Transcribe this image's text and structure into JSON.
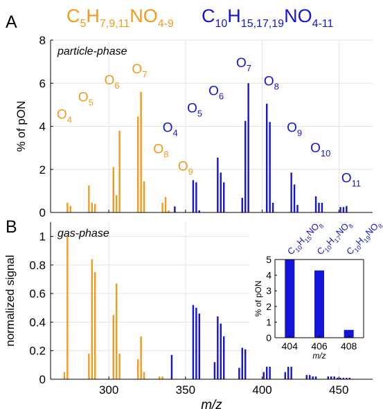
{
  "colors": {
    "orange": "#F39A1E",
    "blue": "#1414D6",
    "axis": "#000000",
    "grid": "#E3E3E3"
  },
  "headers": {
    "orange": {
      "c": "C",
      "c_sub": "5",
      "h": "H",
      "h_sub": "7,9,11",
      "rest": "NO",
      "rest_sub": "4-9"
    },
    "blue": {
      "c": "C",
      "c_sub": "10",
      "h": "H",
      "h_sub": "15,17,19",
      "rest": "NO",
      "rest_sub": "4-11"
    }
  },
  "chart_data": [
    {
      "id": "A",
      "type": "bar",
      "panel_label": "A",
      "inner_title": "particle-phase",
      "ylabel": "% of pON",
      "xlim": [
        262,
        472
      ],
      "ylim": [
        0,
        8
      ],
      "yticks": [
        "0",
        "2",
        "4",
        "6",
        "8"
      ],
      "ytick_values": [
        0,
        2,
        4,
        6,
        8
      ],
      "xticks": [
        300,
        350,
        400,
        450
      ],
      "grid": true,
      "series": [
        {
          "color": "orange",
          "x": [
            273,
            275,
            287,
            289,
            291,
            303,
            305,
            307,
            319,
            321,
            323,
            335,
            337,
            339
          ],
          "values": [
            0.45,
            0.3,
            1.25,
            0.45,
            0.4,
            2.1,
            0.8,
            3.8,
            4.45,
            5.6,
            1.45,
            0.45,
            0.72,
            0.1
          ]
        },
        {
          "color": "blue",
          "x": [
            343,
            355,
            357,
            359,
            371,
            373,
            375,
            387,
            389,
            391,
            403,
            405,
            407,
            419,
            421,
            423,
            435,
            437,
            439,
            451,
            453,
            455
          ],
          "values": [
            0.28,
            1.5,
            1.4,
            0.1,
            2.55,
            1.85,
            1.4,
            0.68,
            4.25,
            6.0,
            5.05,
            4.2,
            0.45,
            1.85,
            1.3,
            0.35,
            0.75,
            0.45,
            0.45,
            0.25,
            0.25,
            0.3
          ]
        }
      ],
      "annotations": [
        {
          "base": "O",
          "sub": "4",
          "x": 271,
          "y": 4.35,
          "color": "orange"
        },
        {
          "base": "O",
          "sub": "5",
          "x": 285,
          "y": 5.15,
          "color": "orange"
        },
        {
          "base": "O",
          "sub": "6",
          "x": 302,
          "y": 5.95,
          "color": "orange"
        },
        {
          "base": "O",
          "sub": "7",
          "x": 320,
          "y": 6.45,
          "color": "orange"
        },
        {
          "base": "O",
          "sub": "8",
          "x": 334,
          "y": 2.75,
          "color": "orange"
        },
        {
          "base": "O",
          "sub": "9",
          "x": 350,
          "y": 1.95,
          "color": "orange"
        },
        {
          "base": "O",
          "sub": "4",
          "x": 340,
          "y": 3.75,
          "color": "blue"
        },
        {
          "base": "O",
          "sub": "5",
          "x": 356,
          "y": 4.65,
          "color": "blue"
        },
        {
          "base": "O",
          "sub": "6",
          "x": 370,
          "y": 5.45,
          "color": "blue"
        },
        {
          "base": "O",
          "sub": "7",
          "x": 388,
          "y": 6.75,
          "color": "blue"
        },
        {
          "base": "O",
          "sub": "8",
          "x": 406,
          "y": 5.9,
          "color": "blue"
        },
        {
          "base": "O",
          "sub": "9",
          "x": 421,
          "y": 3.75,
          "color": "blue"
        },
        {
          "base": "O",
          "sub": "10",
          "x": 438,
          "y": 2.8,
          "color": "blue"
        },
        {
          "base": "O",
          "sub": "11",
          "x": 458,
          "y": 1.4,
          "color": "blue"
        }
      ]
    },
    {
      "id": "B",
      "type": "bar",
      "panel_label": "B",
      "inner_title": "gas-phase",
      "ylabel": "normalized signal",
      "xlabel": "m/z",
      "xlim": [
        262,
        472
      ],
      "ylim": [
        0,
        1.1
      ],
      "yticks": [
        "0",
        "0.2",
        "0.4",
        "0.6",
        "0.8",
        "1"
      ],
      "ytick_values": [
        0,
        0.2,
        0.4,
        0.6,
        0.8,
        1
      ],
      "xticks": [
        300,
        350,
        400,
        450
      ],
      "xtick_labels": [
        "300",
        "350",
        "400",
        "450"
      ],
      "grid": true,
      "series": [
        {
          "color": "orange",
          "x": [
            271,
            273,
            287,
            289,
            291,
            303,
            305,
            307,
            319,
            321,
            323,
            333,
            335
          ],
          "values": [
            0.05,
            1.0,
            0.18,
            0.84,
            0.75,
            0.45,
            0.67,
            0.18,
            0.14,
            0.3,
            0.05,
            0.02,
            0.02
          ]
        },
        {
          "color": "blue",
          "x": [
            341,
            355,
            357,
            359,
            369,
            371,
            373,
            375,
            385,
            387,
            389,
            401,
            403,
            405,
            415,
            417,
            419,
            429,
            431,
            433,
            435,
            443,
            445,
            447,
            449,
            451,
            453,
            455,
            457
          ],
          "values": [
            0.17,
            0.52,
            0.5,
            0.46,
            0.12,
            0.44,
            0.39,
            0.3,
            0.08,
            0.22,
            0.21,
            0.05,
            0.16,
            0.13,
            0.05,
            0.12,
            0.09,
            0.03,
            0.03,
            0.02,
            0.02,
            0.02,
            0.02,
            0.02,
            0.01,
            0.01,
            0.01,
            0.01,
            0.01
          ]
        }
      ]
    },
    {
      "id": "inset",
      "type": "bar",
      "ylabel": "% of pON",
      "xlabel": "m/z",
      "categories": [
        "404",
        "406",
        "408"
      ],
      "values": [
        5.0,
        4.3,
        0.5
      ],
      "ylim": [
        0,
        5
      ],
      "yticks": [
        "0",
        "1",
        "2",
        "3",
        "4",
        "5"
      ],
      "grid": false,
      "color": "blue",
      "compound_labels": [
        {
          "parts": [
            [
              "C",
              ""
            ],
            [
              "10",
              "sub"
            ],
            [
              "H",
              ""
            ],
            [
              "15",
              "sub"
            ],
            [
              "NO",
              ""
            ],
            [
              "8",
              "sub"
            ]
          ]
        },
        {
          "parts": [
            [
              "C",
              ""
            ],
            [
              "10",
              "sub"
            ],
            [
              "H",
              ""
            ],
            [
              "17",
              "sub"
            ],
            [
              "NO",
              ""
            ],
            [
              "8",
              "sub"
            ]
          ]
        },
        {
          "parts": [
            [
              "C",
              ""
            ],
            [
              "10",
              "sub"
            ],
            [
              "H",
              ""
            ],
            [
              "19",
              "sub"
            ],
            [
              "NO",
              ""
            ],
            [
              "8",
              "sub"
            ]
          ]
        }
      ]
    }
  ]
}
